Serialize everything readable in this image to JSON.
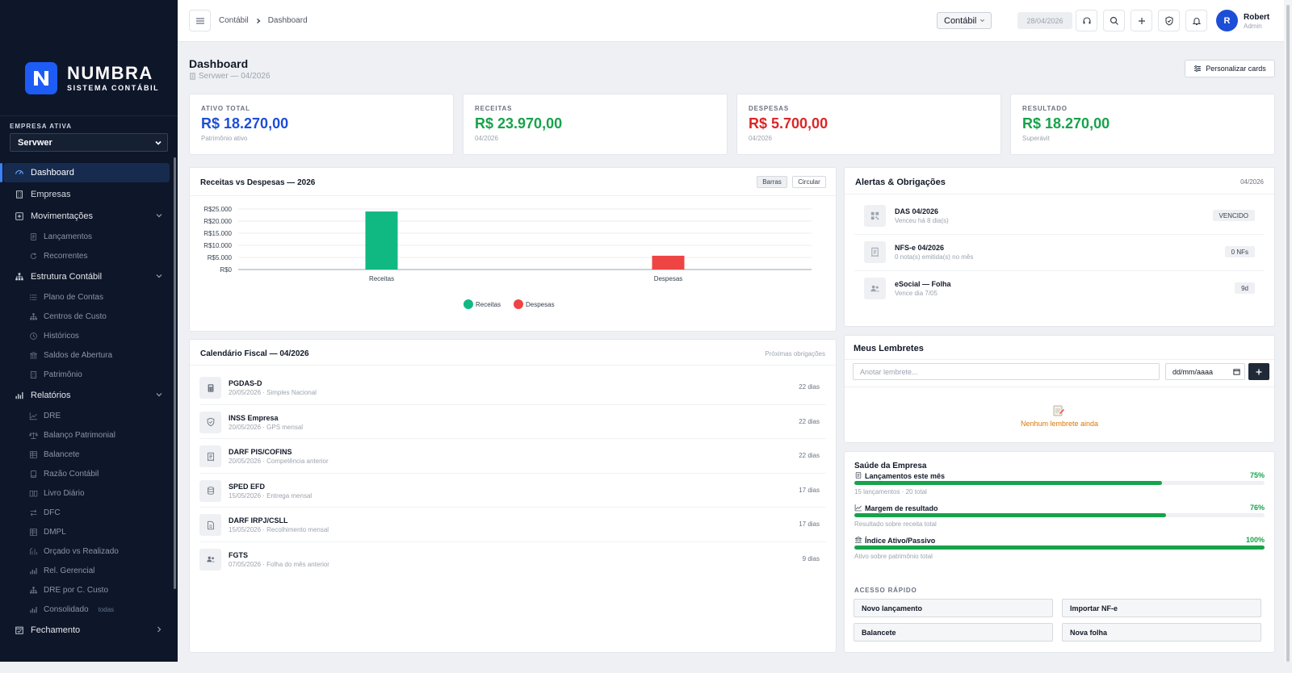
{
  "brand": {
    "name": "NUMBRA",
    "subtitle": "SISTEMA CONTÁBIL",
    "accent": "#1d5cf5"
  },
  "sidebar": {
    "empresa_label": "EMPRESA ATIVA",
    "empresa_value": "Servwer",
    "items": [
      {
        "label": "Dashboard",
        "icon": "dashboard-icon",
        "type": "item",
        "active": true
      },
      {
        "label": "Empresas",
        "icon": "building-icon",
        "type": "item"
      },
      {
        "label": "Movimentações",
        "icon": "plus-square-icon",
        "type": "group"
      },
      {
        "label": "Lançamentos",
        "icon": "document-icon",
        "type": "sub"
      },
      {
        "label": "Recorrentes",
        "icon": "refresh-icon",
        "type": "sub"
      },
      {
        "label": "Estrutura Contábil",
        "icon": "sitemap-icon",
        "type": "group"
      },
      {
        "label": "Plano de Contas",
        "icon": "list-icon",
        "type": "sub"
      },
      {
        "label": "Centros de Custo",
        "icon": "sitemap-icon",
        "type": "sub"
      },
      {
        "label": "Históricos",
        "icon": "clock-icon",
        "type": "sub"
      },
      {
        "label": "Saldos de Abertura",
        "icon": "bank-icon",
        "type": "sub"
      },
      {
        "label": "Patrimônio",
        "icon": "building-icon",
        "type": "sub"
      },
      {
        "label": "Relatórios",
        "icon": "bar-chart-icon",
        "type": "group"
      },
      {
        "label": "DRE",
        "icon": "trend-icon",
        "type": "sub"
      },
      {
        "label": "Balanço Patrimonial",
        "icon": "scale-icon",
        "type": "sub"
      },
      {
        "label": "Balancete",
        "icon": "table-icon",
        "type": "sub"
      },
      {
        "label": "Razão Contábil",
        "icon": "book-icon",
        "type": "sub"
      },
      {
        "label": "Livro Diário",
        "icon": "book-open-icon",
        "type": "sub"
      },
      {
        "label": "DFC",
        "icon": "arrows-icon",
        "type": "sub"
      },
      {
        "label": "DMPL",
        "icon": "table-icon",
        "type": "sub"
      },
      {
        "label": "Orçado vs Realizado",
        "icon": "compare-icon",
        "type": "sub"
      },
      {
        "label": "Rel. Gerencial",
        "icon": "bar-chart-icon",
        "type": "sub"
      },
      {
        "label": "DRE por C. Custo",
        "icon": "sitemap-icon",
        "type": "sub"
      },
      {
        "label": "Consolidado",
        "icon": "bar-chart-icon",
        "type": "sub",
        "tag": "todas"
      },
      {
        "label": "Fechamento",
        "icon": "calendar-check-icon",
        "type": "group-collapsed"
      }
    ]
  },
  "topbar": {
    "breadcrumb": [
      "Contábil",
      "Dashboard"
    ],
    "module_select": "Contábil",
    "date": "28/04/2026",
    "user_name": "Robert",
    "user_role": "Admin",
    "avatar_letter": "R"
  },
  "header": {
    "title": "Dashboard",
    "subtitle": "Servwer — 04/2026",
    "customize_label": "Personalizar cards"
  },
  "kpis": [
    {
      "label": "ATIVO TOTAL",
      "value": "R$ 18.270,00",
      "sub": "Patrimônio ativo",
      "color": "#1d4ed8"
    },
    {
      "label": "RECEITAS",
      "value": "R$ 23.970,00",
      "sub": "04/2026",
      "color": "#16a34a"
    },
    {
      "label": "DESPESAS",
      "value": "R$ 5.700,00",
      "sub": "04/2026",
      "color": "#dc2626"
    },
    {
      "label": "RESULTADO",
      "value": "R$ 18.270,00",
      "sub": "Superávit",
      "color": "#16a34a"
    }
  ],
  "chart_card": {
    "title": "Receitas vs Despesas — 2026",
    "btn_bars": "Barras",
    "btn_pie": "Circular"
  },
  "chart_data": {
    "type": "bar",
    "categories": [
      "Receitas",
      "Despesas"
    ],
    "values": [
      23970,
      5700
    ],
    "colors": [
      "#10b981",
      "#ef4444"
    ],
    "yticks": [
      "R$25.000",
      "R$20.000",
      "R$15.000",
      "R$10.000",
      "R$5.000",
      "R$0"
    ],
    "ylim": [
      0,
      25000
    ],
    "legend": [
      "Receitas",
      "Despesas"
    ],
    "legend_position": "bottom",
    "grid": true
  },
  "alerts": {
    "title": "Alertas & Obrigações",
    "period": "04/2026",
    "items": [
      {
        "title": "DAS 04/2026",
        "sub": "Venceu há 8 dia(s)",
        "badge": "VENCIDO",
        "icon": "qrcode-icon"
      },
      {
        "title": "NFS-e 04/2026",
        "sub": "0 nota(s) emitida(s) no mês",
        "badge": "0 NFs",
        "icon": "receipt-icon"
      },
      {
        "title": "eSocial — Folha",
        "sub": "Vence dia 7/05",
        "badge": "9d",
        "icon": "users-icon"
      }
    ]
  },
  "calendar": {
    "title": "Calendário Fiscal — 04/2026",
    "right": "Próximas obrigações",
    "items": [
      {
        "title": "PGDAS-D",
        "sub": "20/05/2026 · Simples Nacional",
        "days": "22 dias",
        "icon": "calculator-icon"
      },
      {
        "title": "INSS Empresa",
        "sub": "20/05/2026 · GPS mensal",
        "days": "22 dias",
        "icon": "shield-icon"
      },
      {
        "title": "DARF PIS/COFINS",
        "sub": "20/05/2026 · Competência anterior",
        "days": "22 dias",
        "icon": "receipt-icon"
      },
      {
        "title": "SPED EFD",
        "sub": "15/05/2026 · Entrega mensal",
        "days": "17 dias",
        "icon": "database-icon"
      },
      {
        "title": "DARF IRPJ/CSLL",
        "sub": "15/05/2026 · Recolhimento mensal",
        "days": "17 dias",
        "icon": "file-icon"
      },
      {
        "title": "FGTS",
        "sub": "07/05/2026 · Folha do mês anterior",
        "days": "9 dias",
        "icon": "users-icon"
      }
    ]
  },
  "reminders": {
    "title": "Meus Lembretes",
    "placeholder": "Anotar lembrete...",
    "date_placeholder": "dd/mm/aaaa",
    "empty": "Nenhum lembrete ainda"
  },
  "health": {
    "title": "Saúde da Empresa",
    "items": [
      {
        "label": "Lançamentos este mês",
        "pct_label": "75%",
        "pct": 0.75,
        "sub": "15 lançamentos · 20 total",
        "icon": "document-icon"
      },
      {
        "label": "Margem de resultado",
        "pct_label": "76%",
        "pct": 0.76,
        "sub": "Resultado sobre receita total",
        "icon": "trend-icon"
      },
      {
        "label": "Índice Ativo/Passivo",
        "pct_label": "100%",
        "pct": 1.0,
        "sub": "Ativo sobre patrimônio total",
        "icon": "bank-icon"
      }
    ],
    "quick_title": "ACESSO RÁPIDO",
    "quick": [
      "Novo lançamento",
      "Importar NF-e",
      "Balancete",
      "Nova folha"
    ]
  }
}
